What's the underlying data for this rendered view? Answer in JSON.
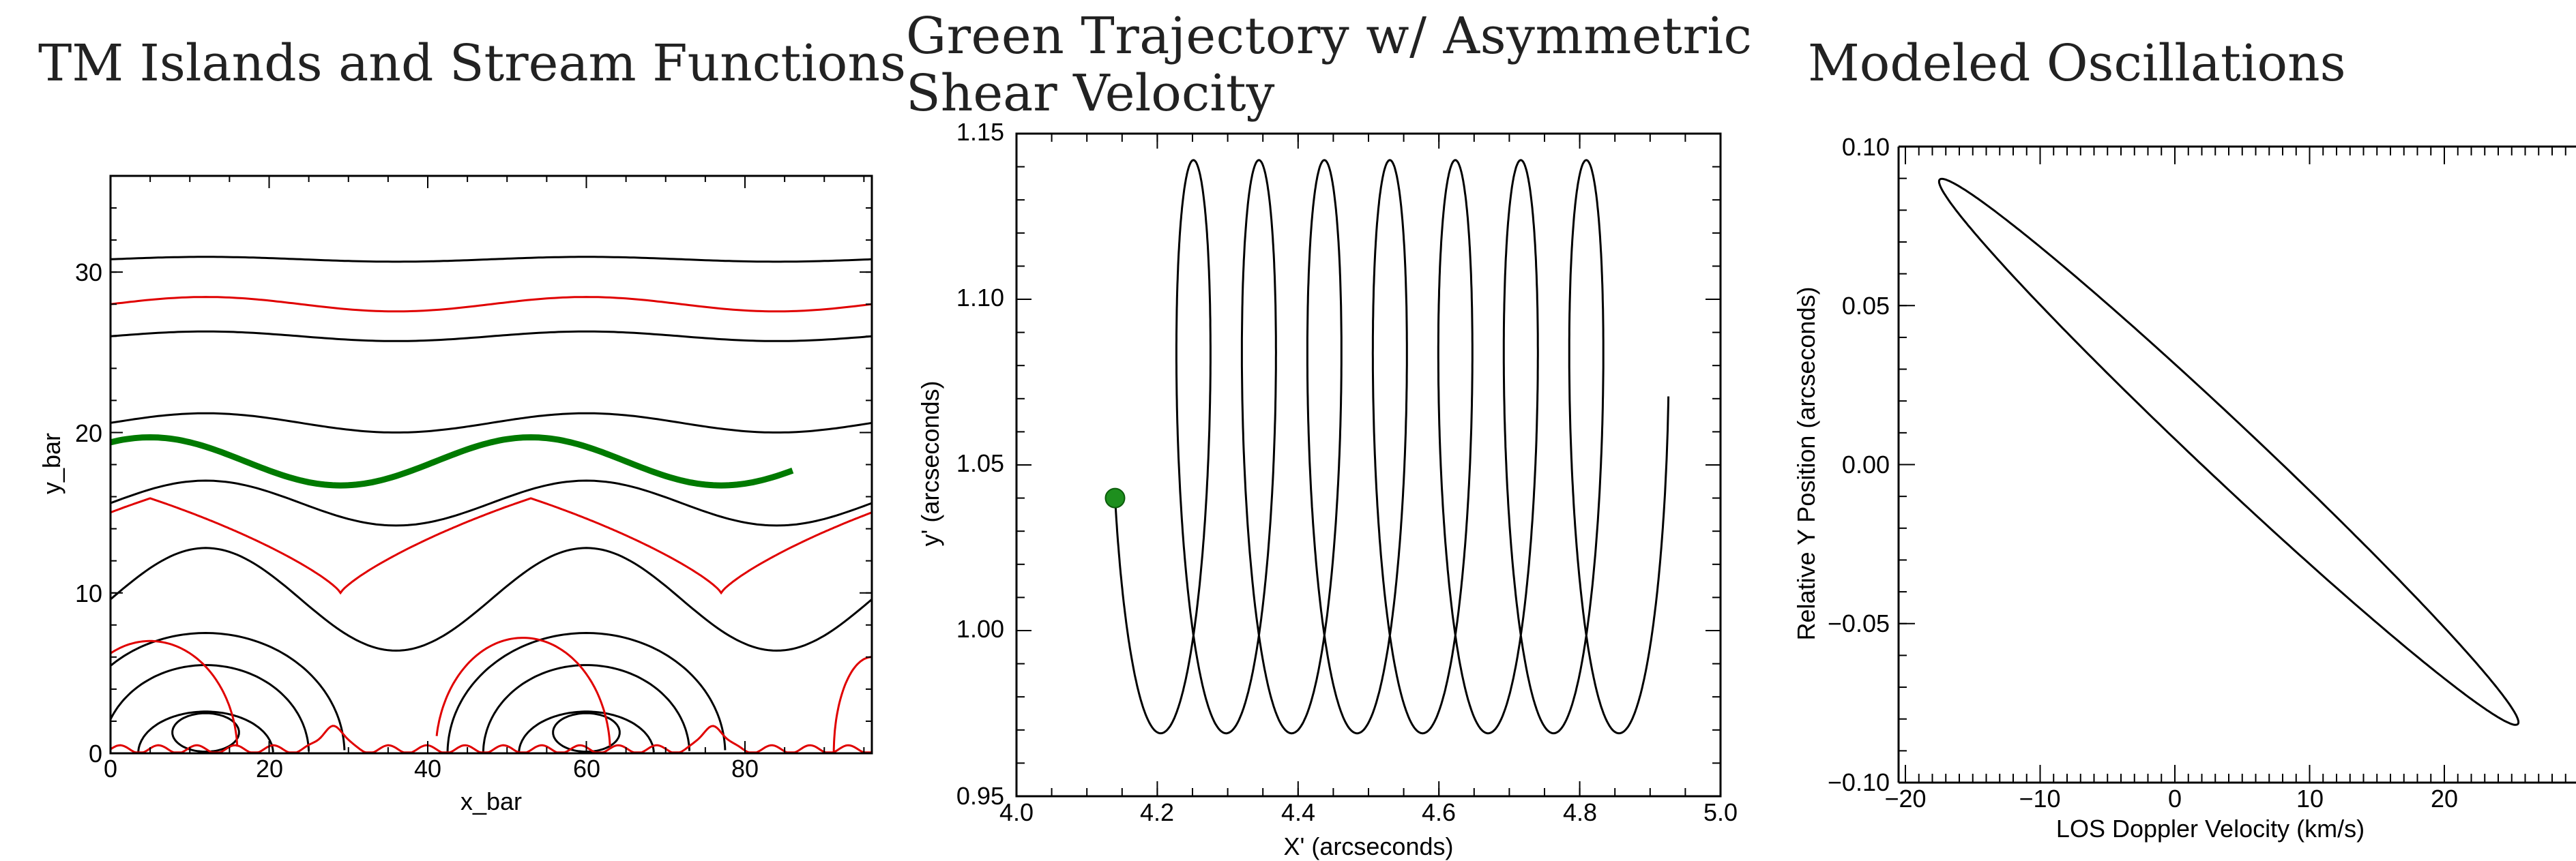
{
  "chart_data": [
    {
      "type": "line",
      "title": "TM Islands and Stream Functions",
      "xlabel": "x_bar",
      "ylabel": "y_bar",
      "xlim": [
        0,
        96
      ],
      "ylim": [
        0,
        36
      ],
      "xticks": [
        "0",
        "20",
        "40",
        "60",
        "80"
      ],
      "yticks": [
        "0",
        "10",
        "20",
        "30"
      ],
      "colors": {
        "black": "#000000",
        "red": "#e00000",
        "green": "#007a00"
      },
      "wavy_lines": [
        {
          "color": "black",
          "mean": 30.8,
          "amp": 0.15
        },
        {
          "color": "red",
          "mean": 28.0,
          "amp": 0.45
        },
        {
          "color": "black",
          "mean": 26.0,
          "amp": 0.3
        },
        {
          "color": "black",
          "mean": 20.6,
          "amp": 0.6
        },
        {
          "color": "black",
          "mean": 15.6,
          "amp": 1.4
        },
        {
          "color": "black",
          "mean": 9.6,
          "amp": 3.2
        }
      ],
      "green_trajectory": {
        "color": "green",
        "x_start": 0,
        "x_end": 86,
        "mean": 18.2,
        "amp": 1.5
      },
      "red_separatrix_minima": [
        {
          "x": 29,
          "y": 10
        },
        {
          "x": 77,
          "y": 10
        }
      ]
    },
    {
      "type": "line",
      "title": "Green Trajectory w/ Asymmetric Shear Velocity",
      "xlabel": "X' (arcseconds)",
      "ylabel": "y' (arcseconds)",
      "xlim": [
        4.0,
        5.0
      ],
      "ylim": [
        0.95,
        1.15
      ],
      "xticks": [
        "4.0",
        "4.2",
        "4.4",
        "4.6",
        "4.8",
        "5.0"
      ],
      "yticks": [
        "0.95",
        "1.00",
        "1.05",
        "1.10",
        "1.15"
      ],
      "start_point": {
        "x": 4.14,
        "y": 1.04
      },
      "y_range_of_path": [
        0.969,
        1.142
      ],
      "drift_per_cycle": 0.093,
      "cycles": 7.5
    },
    {
      "type": "line",
      "title": "Modeled Oscillations",
      "xlabel": "LOS Doppler Velocity (km/s)",
      "ylabel": "Relative Y Position (arcseconds)",
      "xlim": [
        -20,
        30
      ],
      "ylim": [
        -0.1,
        0.1
      ],
      "xticks": [
        "−20",
        "−10",
        "0",
        "10",
        "20"
      ],
      "yticks": [
        "−0.10",
        "−0.05",
        "0.00",
        "0.05",
        "0.10"
      ],
      "ellipse_extremes": [
        {
          "x": -17.5,
          "y": 0.089
        },
        {
          "x": 25.5,
          "y": -0.081
        }
      ],
      "ellipse_minor": 0.012
    }
  ]
}
